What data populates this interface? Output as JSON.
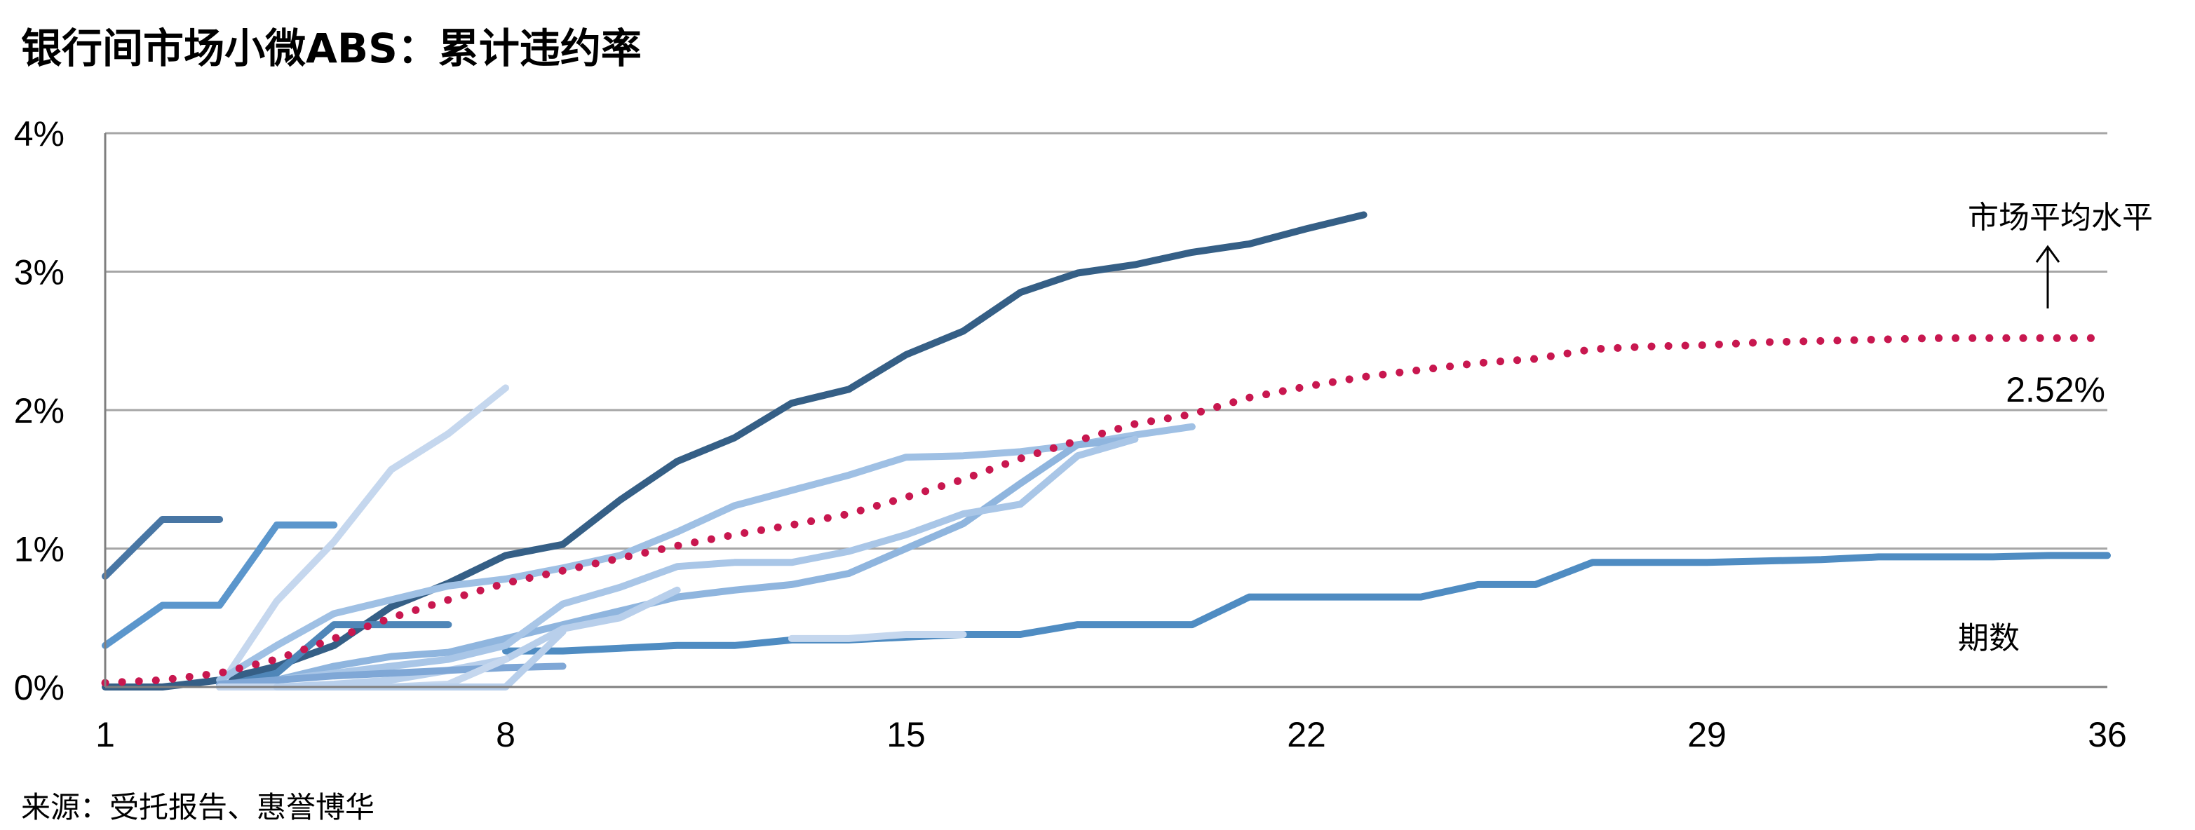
{
  "chart_data": {
    "type": "line",
    "title": "银行间市场小微ABS：累计违约率",
    "source": "来源：受托报告、惠誉博华",
    "xlim": [
      1,
      36
    ],
    "ylim": [
      0,
      4
    ],
    "x_ticks": [
      "1",
      "8",
      "15",
      "22",
      "29",
      "36"
    ],
    "y_ticks": [
      "0%",
      "1%",
      "2%",
      "3%",
      "4%"
    ],
    "y_unit": "%",
    "grid": true,
    "annotations": {
      "average_label": "市场平均水平",
      "average_value": "2.52%",
      "x_axis_label": "期数"
    },
    "colors": {
      "average": "#c8174f",
      "dark": "#355f86",
      "mid": "#4f8cc2",
      "light": "#93b8e0",
      "pale": "#c5d7ee",
      "axis": "#7f7f7f",
      "grid": "#a6a6a6"
    },
    "series": [
      {
        "name": "",
        "color": "#355f86",
        "style": "solid",
        "x": [
          1,
          2,
          3,
          4,
          5,
          6,
          7,
          8,
          9,
          10,
          11,
          12,
          13,
          14,
          15,
          16,
          17,
          18,
          19,
          20,
          21,
          22,
          23
        ],
        "y": [
          0,
          0,
          0.05,
          0.15,
          0.3,
          0.58,
          0.75,
          0.95,
          1.03,
          1.35,
          1.63,
          1.8,
          2.05,
          2.15,
          2.4,
          2.57,
          2.85,
          2.99,
          3.05,
          3.14,
          3.2,
          3.31,
          3.41
        ]
      },
      {
        "name": "",
        "color": "#4f8cc2",
        "style": "solid",
        "x": [
          8,
          9,
          10,
          11,
          12,
          13,
          14,
          15,
          16,
          17,
          18,
          19,
          20,
          21,
          22,
          23,
          24,
          25,
          26,
          27,
          28,
          29,
          30,
          31,
          32,
          33,
          34,
          35,
          36
        ],
        "y": [
          0.26,
          0.26,
          0.28,
          0.3,
          0.3,
          0.34,
          0.34,
          0.36,
          0.38,
          0.38,
          0.45,
          0.45,
          0.45,
          0.65,
          0.65,
          0.65,
          0.65,
          0.74,
          0.74,
          0.9,
          0.9,
          0.9,
          0.91,
          0.92,
          0.94,
          0.94,
          0.94,
          0.95,
          0.95
        ]
      },
      {
        "name": "",
        "color": "#4876a4",
        "style": "solid",
        "x": [
          1,
          2,
          3
        ],
        "y": [
          0.8,
          1.21,
          1.21
        ]
      },
      {
        "name": "",
        "color": "#5b96cc",
        "style": "solid",
        "x": [
          1,
          2,
          3,
          4,
          5
        ],
        "y": [
          0.3,
          0.59,
          0.59,
          1.17,
          1.17
        ]
      },
      {
        "name": "",
        "color": "#4f86b8",
        "style": "solid",
        "x": [
          3,
          4,
          5,
          6,
          7
        ],
        "y": [
          0,
          0.1,
          0.45,
          0.45,
          0.45
        ]
      },
      {
        "name": "",
        "color": "#c5d7ee",
        "style": "solid",
        "x": [
          3,
          4,
          5,
          6,
          7,
          8
        ],
        "y": [
          0,
          0.62,
          1.05,
          1.57,
          1.83,
          2.16
        ]
      },
      {
        "name": "",
        "color": "#9fc0e4",
        "style": "solid",
        "x": [
          3,
          4,
          5,
          6,
          7,
          8,
          9,
          10,
          11,
          12,
          13,
          14,
          15,
          16,
          17,
          18,
          19,
          20
        ],
        "y": [
          0.05,
          0.3,
          0.53,
          0.63,
          0.73,
          0.78,
          0.86,
          0.95,
          1.12,
          1.31,
          1.42,
          1.53,
          1.66,
          1.67,
          1.7,
          1.75,
          1.82,
          1.88
        ]
      },
      {
        "name": "",
        "color": "#8fb5de",
        "style": "solid",
        "x": [
          3,
          4,
          5,
          6,
          7,
          8,
          9,
          10,
          11,
          12,
          13,
          14,
          15,
          16,
          17,
          18,
          19
        ],
        "y": [
          0,
          0.05,
          0.15,
          0.22,
          0.25,
          0.35,
          0.45,
          0.55,
          0.65,
          0.7,
          0.74,
          0.82,
          1.0,
          1.18,
          1.47,
          1.75,
          1.79
        ]
      },
      {
        "name": "",
        "color": "#a9c6e7",
        "style": "solid",
        "x": [
          3,
          4,
          5,
          6,
          7,
          8,
          9,
          10,
          11,
          12,
          13,
          14,
          15,
          16,
          17,
          18,
          19
        ],
        "y": [
          0,
          0.05,
          0.1,
          0.15,
          0.2,
          0.3,
          0.6,
          0.72,
          0.87,
          0.9,
          0.9,
          0.98,
          1.1,
          1.25,
          1.32,
          1.67,
          1.79
        ]
      },
      {
        "name": "",
        "color": "#b8cfeb",
        "style": "solid",
        "x": [
          3,
          4,
          5,
          6,
          7,
          8,
          9,
          10,
          11
        ],
        "y": [
          0,
          0,
          0.02,
          0.05,
          0.12,
          0.2,
          0.42,
          0.5,
          0.7
        ]
      },
      {
        "name": "",
        "color": "#7fa7d6",
        "style": "solid",
        "x": [
          3,
          4,
          5,
          6,
          7,
          8,
          9
        ],
        "y": [
          0.02,
          0.05,
          0.08,
          0.1,
          0.12,
          0.14,
          0.15
        ]
      },
      {
        "name": "",
        "color": "#c5d7ee",
        "style": "solid",
        "x": [
          3,
          4,
          5,
          6,
          7,
          8
        ],
        "y": [
          0,
          0,
          0,
          0,
          0.02,
          0.2
        ]
      },
      {
        "name": "",
        "color": "#b8cfeb",
        "style": "solid",
        "x": [
          4,
          5,
          6,
          7,
          8,
          9
        ],
        "y": [
          0,
          0,
          0,
          0,
          0,
          0.4
        ]
      },
      {
        "name": "",
        "color": "#c5d7ee",
        "style": "solid",
        "x": [
          13,
          14,
          15,
          16
        ],
        "y": [
          0.35,
          0.35,
          0.38,
          0.38
        ]
      },
      {
        "name": "",
        "color": "#c8174f",
        "style": "dotted",
        "x": [
          1,
          2,
          3,
          4,
          5,
          6,
          7,
          8,
          9,
          10,
          11,
          12,
          13,
          14,
          15,
          16,
          17,
          18,
          19,
          20,
          21,
          22,
          23,
          24,
          25,
          26,
          27,
          28,
          29,
          30,
          31,
          32,
          33,
          34,
          35,
          36
        ],
        "y": [
          0.03,
          0.05,
          0.1,
          0.2,
          0.35,
          0.5,
          0.63,
          0.75,
          0.84,
          0.93,
          1.02,
          1.1,
          1.17,
          1.25,
          1.37,
          1.5,
          1.65,
          1.78,
          1.9,
          1.97,
          2.09,
          2.17,
          2.24,
          2.29,
          2.34,
          2.37,
          2.44,
          2.46,
          2.47,
          2.49,
          2.5,
          2.51,
          2.52,
          2.52,
          2.52,
          2.52
        ]
      }
    ]
  }
}
